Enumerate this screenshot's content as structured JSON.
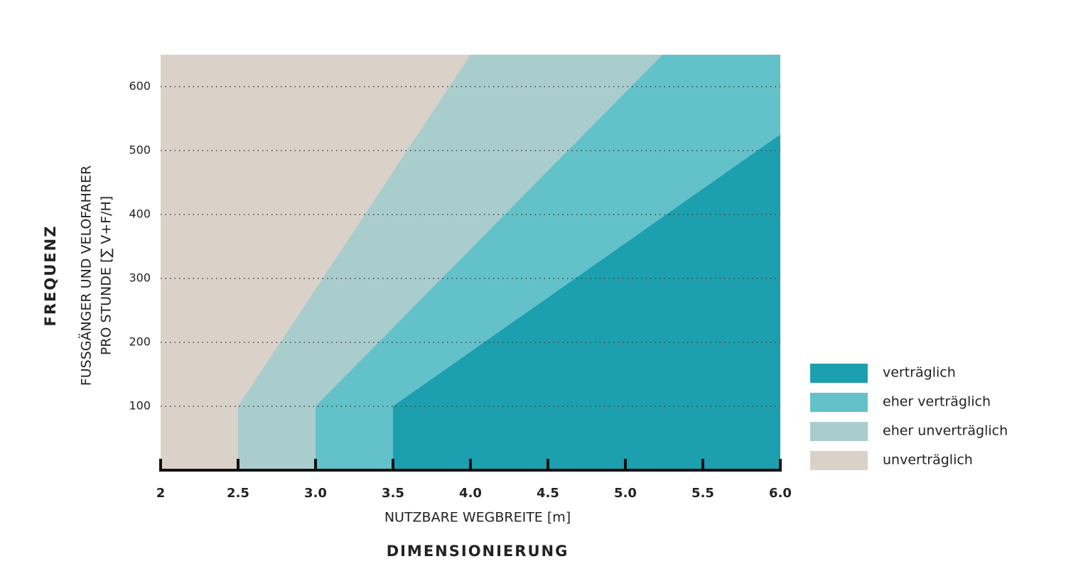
{
  "chart_data": {
    "type": "area",
    "title": "DIMENSIONIERUNG",
    "x_label": "NUTZBARE WEGBREITE [m]",
    "y_title": "FREQUENZ",
    "y_label": [
      "FUSSGÄNGER UND VELOFAHRER",
      "PRO STUNDE [∑ V+F/H]"
    ],
    "xlim": [
      2,
      6
    ],
    "ylim": [
      0,
      650
    ],
    "xticks": [
      2,
      2.5,
      {
        "value": 3,
        "label": "3.0"
      },
      3.5,
      {
        "value": 4,
        "label": "4.0"
      },
      4.5,
      {
        "value": 5,
        "label": "5.0"
      },
      5.5,
      {
        "value": 6,
        "label": "6.0"
      }
    ],
    "yticks": [
      100,
      200,
      300,
      400,
      500,
      600
    ],
    "grid": true,
    "legend": "right",
    "series": [
      {
        "name": "verträglich",
        "color": "#1c9fae",
        "x": [
          3.5,
          3.5,
          6
        ],
        "values": [
          0,
          100,
          525
        ]
      },
      {
        "name": "eher verträglich",
        "color": "#63c1c9",
        "x": [
          3,
          3,
          5.24
        ],
        "values": [
          0,
          100,
          650
        ]
      },
      {
        "name": "eher unverträglich",
        "color": "#a9cdcc",
        "x": [
          2.5,
          2.5,
          4
        ],
        "values": [
          0,
          100,
          650
        ]
      },
      {
        "name": "unverträglich",
        "color": "#dad1c8",
        "x": [
          2,
          2
        ],
        "values": [
          0,
          650
        ]
      }
    ]
  }
}
